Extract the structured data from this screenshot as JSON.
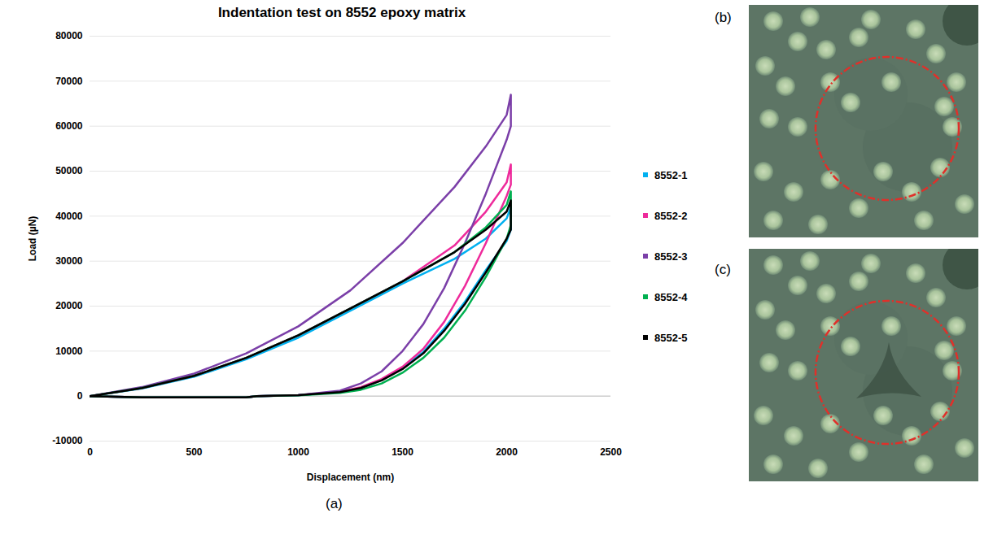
{
  "chart_data": {
    "type": "line",
    "title": "Indentation test on 8552 epoxy matrix",
    "xlabel": "Displacement (nm)",
    "ylabel": "Load (µN)",
    "xlim": [
      0,
      2500
    ],
    "xticks": [
      0,
      500,
      1000,
      1500,
      2000,
      2500
    ],
    "ylim": [
      -10000,
      80000
    ],
    "yticks": [
      -10000,
      0,
      10000,
      20000,
      30000,
      40000,
      50000,
      60000,
      70000,
      80000
    ],
    "grid": true,
    "legend": "right",
    "x": [
      0,
      250,
      500,
      750,
      1000,
      1250,
      1500,
      1750,
      1900,
      2000,
      2020,
      2020,
      2000,
      1900,
      1800,
      1700,
      1600,
      1500,
      1400,
      1300,
      1200,
      1000,
      800,
      750,
      500,
      250,
      0
    ],
    "series": [
      {
        "name": "8552-1",
        "color": "#00b0f0",
        "values": [
          0,
          1700,
          4300,
          8200,
          13000,
          19000,
          25000,
          30500,
          35000,
          39500,
          42000,
          37000,
          34500,
          28000,
          21000,
          15000,
          9800,
          6200,
          3600,
          1800,
          900,
          200,
          0,
          -300,
          -300,
          -300,
          0
        ]
      },
      {
        "name": "8552-2",
        "color": "#ee2a9b",
        "values": [
          0,
          1800,
          4500,
          8500,
          13500,
          19500,
          25500,
          33500,
          41000,
          47500,
          51500,
          47000,
          44500,
          34000,
          24500,
          16500,
          10500,
          6500,
          3800,
          2000,
          1000,
          200,
          0,
          -300,
          -300,
          -300,
          0
        ]
      },
      {
        "name": "8552-3",
        "color": "#7b3fa8",
        "values": [
          0,
          2000,
          5000,
          9500,
          15500,
          23500,
          34000,
          46500,
          55500,
          62500,
          67000,
          60000,
          57000,
          45000,
          34000,
          24000,
          16000,
          10000,
          5500,
          2800,
          1200,
          200,
          0,
          -300,
          -300,
          -300,
          0
        ]
      },
      {
        "name": "8552-4",
        "color": "#00b050",
        "values": [
          0,
          1800,
          4500,
          8500,
          13500,
          19500,
          25500,
          32000,
          37500,
          42500,
          45500,
          38000,
          35000,
          26500,
          19000,
          13000,
          8500,
          5200,
          2800,
          1400,
          700,
          150,
          0,
          -300,
          -300,
          -300,
          0
        ]
      },
      {
        "name": "8552-5",
        "color": "#000000",
        "values": [
          0,
          1800,
          4500,
          8500,
          13500,
          19500,
          25500,
          32000,
          37000,
          41000,
          43500,
          37000,
          35000,
          27500,
          20500,
          14500,
          9500,
          6000,
          3500,
          1800,
          900,
          200,
          0,
          -300,
          -300,
          -300,
          0
        ]
      }
    ]
  },
  "panels": [
    {
      "label": "(a)"
    },
    {
      "label": "(b)"
    },
    {
      "label": "(c)"
    }
  ]
}
